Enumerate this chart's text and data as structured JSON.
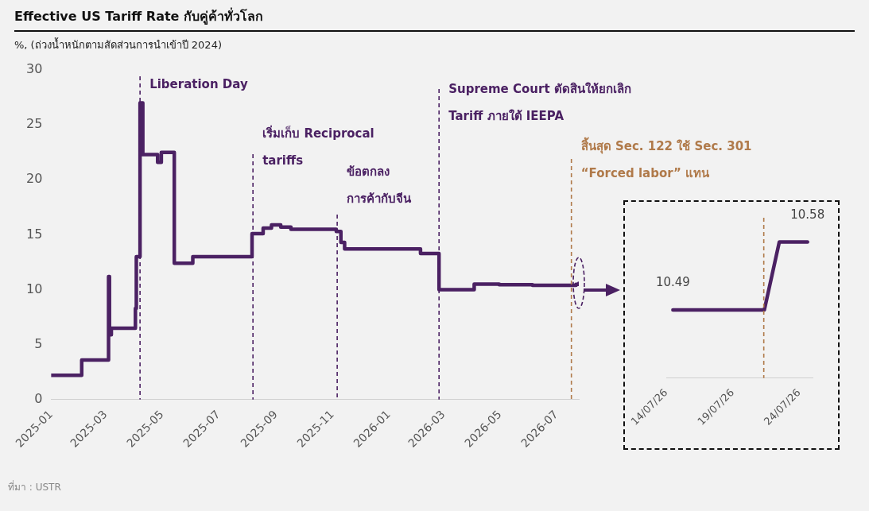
{
  "chart_data": [
    {
      "type": "step",
      "title": "Effective US Tariff Rate กับคู่ค้าทั่วโลก",
      "subtitle": "%, (ถ่วงน้ำหนักตามสัดส่วนการนำเข้าปี 2024)",
      "x": [
        "2025-01-01",
        "2025-02-03",
        "2025-03-04",
        "2025-03-05",
        "2025-03-07",
        "2025-04-02",
        "2025-04-03",
        "2025-04-07",
        "2025-04-10",
        "2025-04-26",
        "2025-04-30",
        "2025-05-14",
        "2025-06-03",
        "2025-08-06",
        "2025-08-18",
        "2025-08-27",
        "2025-09-06",
        "2025-09-17",
        "2025-11-05",
        "2025-11-10",
        "2025-11-14",
        "2026-02-04",
        "2026-02-24",
        "2026-04-03",
        "2026-04-30",
        "2026-06-05",
        "2026-07-22",
        "2026-07-25"
      ],
      "series": [
        {
          "color": "#4b2163",
          "values": [
            2.2,
            3.6,
            11.2,
            5.9,
            6.5,
            8.3,
            13.0,
            27.0,
            22.3,
            21.6,
            22.5,
            12.4,
            13.0,
            15.1,
            15.6,
            15.9,
            15.7,
            15.5,
            15.3,
            14.3,
            13.7,
            13.3,
            10.0,
            10.5,
            10.45,
            10.4,
            10.49,
            10.58
          ]
        }
      ],
      "xlim": [
        "2025-01-01",
        "2026-07-25"
      ],
      "xticks": [
        "2025-01",
        "2025-03",
        "2025-05",
        "2025-07",
        "2025-09",
        "2025-11",
        "2026-01",
        "2026-03",
        "2026-05",
        "2026-07"
      ],
      "ylim": [
        0,
        30
      ],
      "yticks": [
        0,
        5,
        10,
        15,
        20,
        25,
        30
      ],
      "ref_lines": [
        {
          "axis": "x",
          "value": "2025-04-07",
          "label": "Liberation Day",
          "color": "#4b2163",
          "line_style": "dashed"
        },
        {
          "axis": "x",
          "value": "2025-08-07",
          "label": "เริ่มเก็บ Reciprocal\ntariffs",
          "color": "#4b2163",
          "line_style": "dashed"
        },
        {
          "axis": "x",
          "value": "2025-11-06",
          "label": "ข้อตกลง\nการค้ากับจีน",
          "color": "#4b2163",
          "line_style": "dashed"
        },
        {
          "axis": "x",
          "value": "2026-02-24",
          "label": "Supreme Court ตัดสินให้ยกเลิก\nTariff ภายใต้ IEEPA",
          "color": "#4b2163",
          "line_style": "dashed"
        },
        {
          "axis": "x",
          "value": "2026-07-17",
          "label": "สิ้นสุด Sec. 122 ใช้ Sec. 301\n“Forced labor” แทน",
          "color": "#b07a4a",
          "line_style": "dashed"
        }
      ],
      "annotations": [
        "ที่มา : USTR"
      ],
      "grid": false,
      "legend": false,
      "marker": "none"
    },
    {
      "type": "line",
      "x": [
        "2026-07-14T12:00",
        "2026-07-21T09:00",
        "2026-07-22T12:00",
        "2026-07-24T15:00"
      ],
      "series": [
        {
          "color": "#4b2163",
          "values": [
            10.49,
            10.49,
            10.58,
            10.58
          ],
          "value_labels": [
            "10.49",
            null,
            null,
            "10.58"
          ]
        }
      ],
      "xlim": [
        "2026-07-14",
        "2026-07-25"
      ],
      "xticks": [
        {
          "value": "2026-07-14",
          "label": "14/07/26"
        },
        {
          "value": "2026-07-19",
          "label": "19/07/26"
        },
        {
          "value": "2026-07-24",
          "label": "24/07/26"
        }
      ],
      "ref_lines": [
        {
          "axis": "x",
          "value": "2026-07-21T08:00",
          "color": "#b07a4a",
          "line_style": "dashed"
        }
      ],
      "tick_labels": "x",
      "grid": false,
      "legend": false,
      "marker": "none"
    }
  ]
}
